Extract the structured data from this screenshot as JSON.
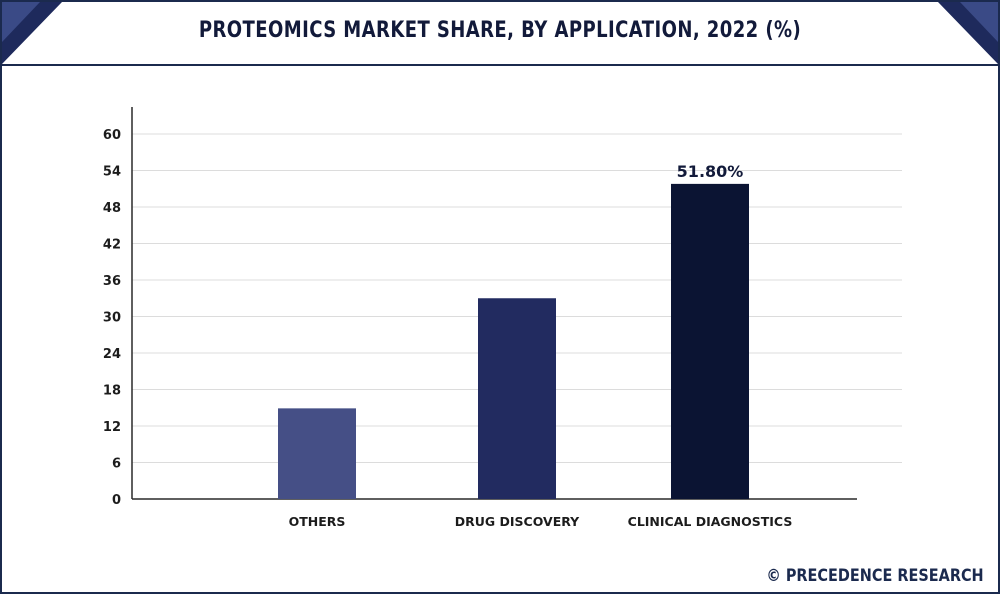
{
  "header": {
    "title": "PROTEOMICS MARKET SHARE, BY APPLICATION, 2022 (%)"
  },
  "footer": {
    "source": "© PRECEDENCE RESEARCH"
  },
  "colors": {
    "frame": "#1b2a4e",
    "corner": "#1e2a5c",
    "grid": "#dcdcdc",
    "axis": "#2a2a2a"
  },
  "chart_data": {
    "type": "bar",
    "title": "PROTEOMICS MARKET SHARE, BY APPLICATION, 2022 (%)",
    "xlabel": "",
    "ylabel": "",
    "categories": [
      "OTHERS",
      "DRUG DISCOVERY",
      "CLINICAL DIAGNOSTICS"
    ],
    "values": [
      14.9,
      33.0,
      51.8
    ],
    "bar_colors": [
      "#454f86",
      "#222b60",
      "#0b1433"
    ],
    "data_labels": [
      "",
      "",
      "51.80%"
    ],
    "ylim": [
      0,
      60
    ],
    "yticks": [
      0,
      6,
      12,
      18,
      24,
      30,
      36,
      42,
      48,
      54,
      60
    ],
    "grid": true,
    "legend": "none"
  }
}
